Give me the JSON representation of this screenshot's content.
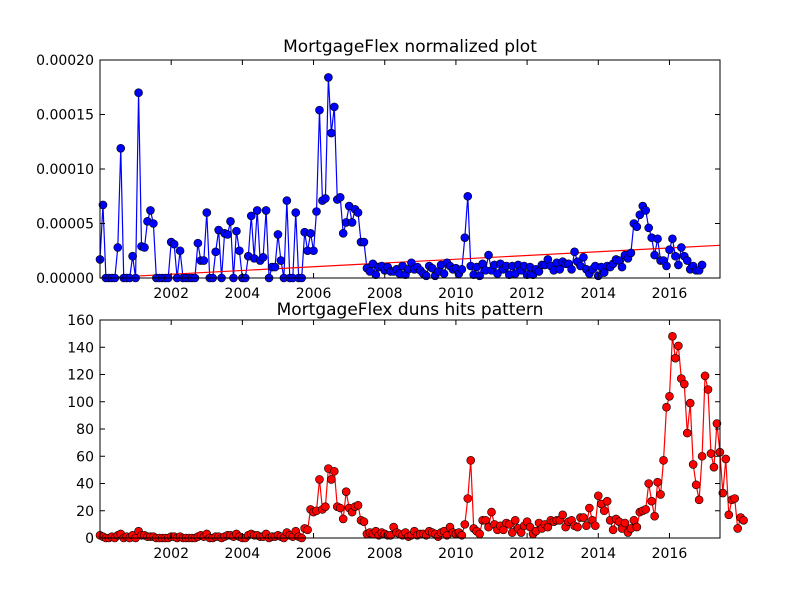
{
  "chart_data": [
    {
      "type": "line",
      "title": "MortgageFlex normalized plot",
      "xlabel": "",
      "ylabel": "",
      "x_unit": "decimal year",
      "xlim": [
        2000.0,
        2017.42
      ],
      "ylim": [
        0.0,
        0.0002
      ],
      "x_ticks": [
        2002,
        2004,
        2006,
        2008,
        2010,
        2012,
        2014,
        2016
      ],
      "x_tick_labels": [
        "2002",
        "2004",
        "2006",
        "2008",
        "2010",
        "2012",
        "2014",
        "2016"
      ],
      "y_ticks": [
        0,
        5e-05,
        0.0001,
        0.00015,
        0.0002
      ],
      "y_tick_labels": [
        "0.00000",
        "0.00005",
        "0.00010",
        "0.00015",
        "0.00020"
      ],
      "grid": false,
      "legend": "none",
      "colors": {
        "series": "#0000ff",
        "trend": "#ff0000"
      },
      "series": [
        {
          "values": [
            1.7e-05,
            6.7e-05,
            0.0,
            0.0,
            0.0,
            0.0,
            2.8e-05,
            0.000119,
            0.0,
            0.0,
            0.0,
            2e-05,
            0.0,
            0.00017,
            2.9e-05,
            2.8e-05,
            5.2e-05,
            6.2e-05,
            5e-05,
            0.0,
            0.0,
            0.0,
            0.0,
            0.0,
            3.3e-05,
            3.1e-05,
            0.0,
            2.5e-05,
            0.0,
            0.0,
            0.0,
            0.0,
            0.0,
            3.2e-05,
            1.6e-05,
            1.6e-05,
            6e-05,
            0.0,
            0.0,
            2.4e-05,
            4.4e-05,
            0.0,
            4.1e-05,
            4e-05,
            5.2e-05,
            0.0,
            4.3e-05,
            2.5e-05,
            0.0,
            0.0,
            2e-05,
            5.7e-05,
            1.8e-05,
            6.2e-05,
            1.6e-05,
            1.9e-05,
            6.2e-05,
            0.0,
            1e-05,
            1e-05,
            4e-05,
            1.6e-05,
            0.0,
            7.1e-05,
            0.0,
            0.0,
            6e-05,
            0.0,
            0.0,
            4.2e-05,
            2.5e-05,
            4.1e-05,
            2.5e-05,
            6.1e-05,
            0.000154,
            7.1e-05,
            7.3e-05,
            0.000184,
            0.000133,
            0.000157,
            7.2e-05,
            7.4e-05,
            4.1e-05,
            5.1e-05,
            6.6e-05,
            5.1e-05,
            6.3e-05,
            6e-05,
            3.3e-05,
            3.3e-05,
            9e-06,
            6e-06,
            1.3e-05,
            3e-06,
            1e-05,
            1.1e-05,
            7e-06,
            1e-05,
            6e-06,
            6e-06,
            8e-06,
            4e-06,
            1.1e-05,
            3e-06,
            8e-06,
            1.4e-05,
            8e-06,
            1e-05,
            7e-06,
            4e-06,
            2e-06,
            1.1e-05,
            9e-06,
            2e-06,
            6e-06,
            1.2e-05,
            4e-06,
            1.4e-05,
            1.1e-05,
            8e-06,
            9e-06,
            4e-06,
            8e-06,
            3.7e-05,
            7.5e-05,
            1.1e-05,
            3e-06,
            1e-05,
            2e-06,
            1.3e-05,
            7e-06,
            2.1e-05,
            7e-06,
            1.2e-05,
            4e-06,
            1.3e-05,
            8e-06,
            1.1e-05,
            3e-06,
            1.1e-05,
            4e-06,
            1.2e-05,
            7e-06,
            1.1e-05,
            3e-06,
            1e-05,
            3e-06,
            8e-06,
            6e-06,
            1.2e-05,
            1.2e-05,
            1.7e-05,
            1.1e-05,
            7e-06,
            1.4e-05,
            8e-06,
            1.5e-05,
            1.3e-05,
            1.3e-05,
            8e-06,
            2.4e-05,
            1.5e-05,
            1.1e-05,
            1.9e-05,
            8e-06,
            4e-06,
            8e-06,
            1.1e-05,
            2e-06,
            1e-05,
            5e-06,
            1.1e-05,
            1e-05,
            1.3e-05,
            1.7e-05,
            1.6e-05,
            1e-05,
            2.1e-05,
            1.8e-05,
            2.3e-05,
            5e-05,
            4.7e-05,
            5.8e-05,
            6.6e-05,
            6.2e-05,
            4.6e-05,
            3.7e-05,
            2.1e-05,
            3.6e-05,
            1.6e-05,
            1.6e-05,
            1.1e-05,
            2.6e-05,
            3.6e-05,
            2e-05,
            1.2e-05,
            2.8e-05,
            2e-05,
            1.6e-05,
            8e-06,
            1.1e-05,
            7e-06,
            7e-06,
            1.2e-05
          ]
        }
      ],
      "trend": {
        "x": [
          2000.0,
          2017.42
        ],
        "y": [
          0.0,
          3e-05
        ]
      }
    },
    {
      "type": "line",
      "title": "MortgageFlex duns hits pattern",
      "xlabel": "",
      "ylabel": "",
      "x_unit": "decimal year",
      "xlim": [
        2000.0,
        2017.42
      ],
      "ylim": [
        0,
        160
      ],
      "x_ticks": [
        2002,
        2004,
        2006,
        2008,
        2010,
        2012,
        2014,
        2016
      ],
      "x_tick_labels": [
        "2002",
        "2004",
        "2006",
        "2008",
        "2010",
        "2012",
        "2014",
        "2016"
      ],
      "y_ticks": [
        0,
        20,
        40,
        60,
        80,
        100,
        120,
        140,
        160
      ],
      "y_tick_labels": [
        "0",
        "20",
        "40",
        "60",
        "80",
        "100",
        "120",
        "140",
        "160"
      ],
      "grid": false,
      "legend": "none",
      "colors": {
        "series": "#ff0000",
        "line": "#ff0000"
      },
      "series": [
        {
          "values": [
            2,
            1,
            0,
            0,
            1,
            0,
            2,
            3,
            0,
            1,
            0,
            2,
            0,
            5,
            2,
            2,
            1,
            1,
            1,
            0,
            0,
            0,
            0,
            0,
            1,
            1,
            0,
            1,
            0,
            0,
            0,
            0,
            0,
            1,
            2,
            1,
            3,
            0,
            0,
            1,
            1,
            0,
            1,
            2,
            2,
            1,
            3,
            1,
            0,
            0,
            2,
            3,
            2,
            2,
            1,
            1,
            3,
            0,
            1,
            1,
            2,
            1,
            0,
            4,
            2,
            1,
            5,
            1,
            0,
            7,
            6,
            21,
            19,
            20,
            43,
            21,
            23,
            51,
            43,
            49,
            23,
            22,
            14,
            34,
            22,
            19,
            23,
            24,
            13,
            12,
            3,
            4,
            3,
            5,
            2,
            4,
            3,
            2,
            2,
            8,
            4,
            3,
            2,
            4,
            1,
            2,
            5,
            2,
            3,
            3,
            2,
            5,
            4,
            3,
            1,
            4,
            5,
            2,
            8,
            4,
            3,
            4,
            2,
            10,
            29,
            57,
            7,
            5,
            3,
            13,
            13,
            8,
            19,
            10,
            6,
            9,
            6,
            11,
            10,
            4,
            13,
            7,
            4,
            9,
            12,
            8,
            3,
            5,
            11,
            7,
            10,
            8,
            13,
            12,
            13,
            13,
            17,
            8,
            12,
            13,
            9,
            8,
            15,
            15,
            9,
            22,
            13,
            9,
            31,
            25,
            20,
            27,
            13,
            6,
            14,
            12,
            7,
            11,
            4,
            7,
            13,
            8,
            19,
            20,
            21,
            40,
            27,
            16,
            41,
            32,
            57,
            96,
            104,
            148,
            132,
            141,
            117,
            113,
            77,
            99,
            54,
            39,
            28,
            60,
            119,
            109,
            62,
            52,
            84,
            63,
            33,
            58,
            17,
            28,
            29,
            7,
            15,
            13
          ]
        }
      ]
    }
  ]
}
